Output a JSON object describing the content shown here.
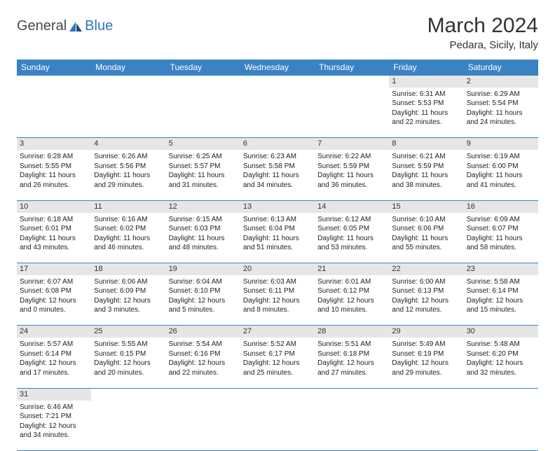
{
  "logo": {
    "text1": "General",
    "text2": "Blue"
  },
  "title": "March 2024",
  "location": "Pedara, Sicily, Italy",
  "colors": {
    "header_bg": "#3b82c4",
    "header_fg": "#ffffff",
    "daynum_bg": "#e6e6e6",
    "border": "#3b82c4",
    "text": "#222222",
    "logo_dark": "#4a4a4a",
    "logo_blue": "#2e75b6"
  },
  "weekdays": [
    "Sunday",
    "Monday",
    "Tuesday",
    "Wednesday",
    "Thursday",
    "Friday",
    "Saturday"
  ],
  "weeks": [
    [
      null,
      null,
      null,
      null,
      null,
      {
        "n": "1",
        "sr": "Sunrise: 6:31 AM",
        "ss": "Sunset: 5:53 PM",
        "d1": "Daylight: 11 hours",
        "d2": "and 22 minutes."
      },
      {
        "n": "2",
        "sr": "Sunrise: 6:29 AM",
        "ss": "Sunset: 5:54 PM",
        "d1": "Daylight: 11 hours",
        "d2": "and 24 minutes."
      }
    ],
    [
      {
        "n": "3",
        "sr": "Sunrise: 6:28 AM",
        "ss": "Sunset: 5:55 PM",
        "d1": "Daylight: 11 hours",
        "d2": "and 26 minutes."
      },
      {
        "n": "4",
        "sr": "Sunrise: 6:26 AM",
        "ss": "Sunset: 5:56 PM",
        "d1": "Daylight: 11 hours",
        "d2": "and 29 minutes."
      },
      {
        "n": "5",
        "sr": "Sunrise: 6:25 AM",
        "ss": "Sunset: 5:57 PM",
        "d1": "Daylight: 11 hours",
        "d2": "and 31 minutes."
      },
      {
        "n": "6",
        "sr": "Sunrise: 6:23 AM",
        "ss": "Sunset: 5:58 PM",
        "d1": "Daylight: 11 hours",
        "d2": "and 34 minutes."
      },
      {
        "n": "7",
        "sr": "Sunrise: 6:22 AM",
        "ss": "Sunset: 5:59 PM",
        "d1": "Daylight: 11 hours",
        "d2": "and 36 minutes."
      },
      {
        "n": "8",
        "sr": "Sunrise: 6:21 AM",
        "ss": "Sunset: 5:59 PM",
        "d1": "Daylight: 11 hours",
        "d2": "and 38 minutes."
      },
      {
        "n": "9",
        "sr": "Sunrise: 6:19 AM",
        "ss": "Sunset: 6:00 PM",
        "d1": "Daylight: 11 hours",
        "d2": "and 41 minutes."
      }
    ],
    [
      {
        "n": "10",
        "sr": "Sunrise: 6:18 AM",
        "ss": "Sunset: 6:01 PM",
        "d1": "Daylight: 11 hours",
        "d2": "and 43 minutes."
      },
      {
        "n": "11",
        "sr": "Sunrise: 6:16 AM",
        "ss": "Sunset: 6:02 PM",
        "d1": "Daylight: 11 hours",
        "d2": "and 46 minutes."
      },
      {
        "n": "12",
        "sr": "Sunrise: 6:15 AM",
        "ss": "Sunset: 6:03 PM",
        "d1": "Daylight: 11 hours",
        "d2": "and 48 minutes."
      },
      {
        "n": "13",
        "sr": "Sunrise: 6:13 AM",
        "ss": "Sunset: 6:04 PM",
        "d1": "Daylight: 11 hours",
        "d2": "and 51 minutes."
      },
      {
        "n": "14",
        "sr": "Sunrise: 6:12 AM",
        "ss": "Sunset: 6:05 PM",
        "d1": "Daylight: 11 hours",
        "d2": "and 53 minutes."
      },
      {
        "n": "15",
        "sr": "Sunrise: 6:10 AM",
        "ss": "Sunset: 6:06 PM",
        "d1": "Daylight: 11 hours",
        "d2": "and 55 minutes."
      },
      {
        "n": "16",
        "sr": "Sunrise: 6:09 AM",
        "ss": "Sunset: 6:07 PM",
        "d1": "Daylight: 11 hours",
        "d2": "and 58 minutes."
      }
    ],
    [
      {
        "n": "17",
        "sr": "Sunrise: 6:07 AM",
        "ss": "Sunset: 6:08 PM",
        "d1": "Daylight: 12 hours",
        "d2": "and 0 minutes."
      },
      {
        "n": "18",
        "sr": "Sunrise: 6:06 AM",
        "ss": "Sunset: 6:09 PM",
        "d1": "Daylight: 12 hours",
        "d2": "and 3 minutes."
      },
      {
        "n": "19",
        "sr": "Sunrise: 6:04 AM",
        "ss": "Sunset: 6:10 PM",
        "d1": "Daylight: 12 hours",
        "d2": "and 5 minutes."
      },
      {
        "n": "20",
        "sr": "Sunrise: 6:03 AM",
        "ss": "Sunset: 6:11 PM",
        "d1": "Daylight: 12 hours",
        "d2": "and 8 minutes."
      },
      {
        "n": "21",
        "sr": "Sunrise: 6:01 AM",
        "ss": "Sunset: 6:12 PM",
        "d1": "Daylight: 12 hours",
        "d2": "and 10 minutes."
      },
      {
        "n": "22",
        "sr": "Sunrise: 6:00 AM",
        "ss": "Sunset: 6:13 PM",
        "d1": "Daylight: 12 hours",
        "d2": "and 12 minutes."
      },
      {
        "n": "23",
        "sr": "Sunrise: 5:58 AM",
        "ss": "Sunset: 6:14 PM",
        "d1": "Daylight: 12 hours",
        "d2": "and 15 minutes."
      }
    ],
    [
      {
        "n": "24",
        "sr": "Sunrise: 5:57 AM",
        "ss": "Sunset: 6:14 PM",
        "d1": "Daylight: 12 hours",
        "d2": "and 17 minutes."
      },
      {
        "n": "25",
        "sr": "Sunrise: 5:55 AM",
        "ss": "Sunset: 6:15 PM",
        "d1": "Daylight: 12 hours",
        "d2": "and 20 minutes."
      },
      {
        "n": "26",
        "sr": "Sunrise: 5:54 AM",
        "ss": "Sunset: 6:16 PM",
        "d1": "Daylight: 12 hours",
        "d2": "and 22 minutes."
      },
      {
        "n": "27",
        "sr": "Sunrise: 5:52 AM",
        "ss": "Sunset: 6:17 PM",
        "d1": "Daylight: 12 hours",
        "d2": "and 25 minutes."
      },
      {
        "n": "28",
        "sr": "Sunrise: 5:51 AM",
        "ss": "Sunset: 6:18 PM",
        "d1": "Daylight: 12 hours",
        "d2": "and 27 minutes."
      },
      {
        "n": "29",
        "sr": "Sunrise: 5:49 AM",
        "ss": "Sunset: 6:19 PM",
        "d1": "Daylight: 12 hours",
        "d2": "and 29 minutes."
      },
      {
        "n": "30",
        "sr": "Sunrise: 5:48 AM",
        "ss": "Sunset: 6:20 PM",
        "d1": "Daylight: 12 hours",
        "d2": "and 32 minutes."
      }
    ],
    [
      {
        "n": "31",
        "sr": "Sunrise: 6:46 AM",
        "ss": "Sunset: 7:21 PM",
        "d1": "Daylight: 12 hours",
        "d2": "and 34 minutes."
      },
      null,
      null,
      null,
      null,
      null,
      null
    ]
  ]
}
